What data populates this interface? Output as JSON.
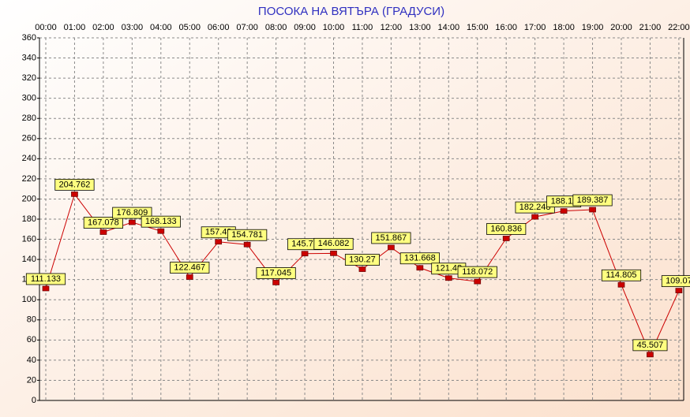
{
  "chart_data": {
    "type": "line",
    "title": "ПОСОКА НА ВЯТЪРА    (ГРАДУСИ)",
    "categories": [
      "00:00",
      "01:00",
      "02:00",
      "03:00",
      "04:00",
      "05:00",
      "06:00",
      "07:00",
      "08:00",
      "09:00",
      "10:00",
      "11:00",
      "12:00",
      "13:00",
      "14:00",
      "15:00",
      "16:00",
      "17:00",
      "18:00",
      "19:00",
      "20:00",
      "21:00",
      "22:00"
    ],
    "series": [
      {
        "name": "ПОСОКА",
        "color": "#cc0000",
        "values": [
          111.133,
          204.762,
          167.078,
          176.809,
          168.133,
          122.467,
          157.49,
          154.781,
          117.045,
          145.77,
          146.082,
          130.27,
          151.867,
          131.668,
          121.48,
          118.072,
          160.836,
          182.248,
          188.11,
          189.387,
          114.805,
          45.507,
          109.07
        ]
      }
    ],
    "ylim": [
      0,
      360
    ],
    "yticks": [
      0,
      20,
      40,
      60,
      80,
      100,
      120,
      140,
      160,
      180,
      200,
      220,
      240,
      260,
      280,
      300,
      320,
      340,
      360
    ],
    "grid": true
  }
}
